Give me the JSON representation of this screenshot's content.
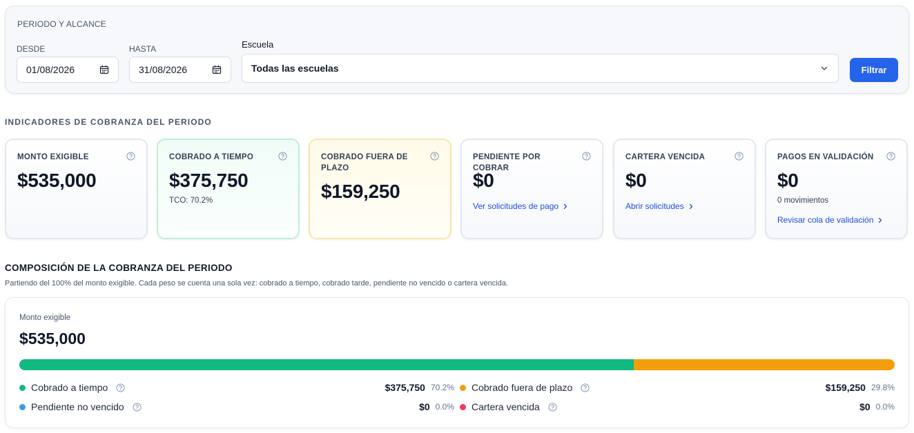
{
  "filters": {
    "title": "PERIODO Y ALCANCE",
    "from_label": "DESDE",
    "from_value": "01/08/2026",
    "to_label": "HASTA",
    "to_value": "31/08/2026",
    "school_label": "Escuela",
    "school_value": "Todas las escuelas",
    "filter_button": "Filtrar"
  },
  "indicators": {
    "title": "INDICADORES DE COBRANZA DEL PERIODO",
    "cards": [
      {
        "label": "MONTO EXIGIBLE",
        "value": "$535,000"
      },
      {
        "label": "COBRADO A TIEMPO",
        "value": "$375,750",
        "sub": "TCO: 70.2%"
      },
      {
        "label": "COBRADO FUERA DE PLAZO",
        "value": "$159,250"
      },
      {
        "label": "PENDIENTE POR COBRAR",
        "value": "$0",
        "link": "Ver solicitudes de pago"
      },
      {
        "label": "CARTERA VENCIDA",
        "value": "$0",
        "link": "Abrir solicitudes"
      },
      {
        "label": "PAGOS EN VALIDACIÓN",
        "value": "$0",
        "sub": "0 movimientos",
        "link": "Revisar cola de validación"
      }
    ]
  },
  "composition": {
    "title": "COMPOSICIÓN DE LA COBRANZA DEL PERIODO",
    "description": "Partiendo del 100% del monto exigible. Cada peso se cuenta una sola vez: cobrado a tiempo, cobrado tarde, pendiente no vencido o cartera vencida.",
    "total_label": "Monto exigible",
    "total_value": "$535,000",
    "segments": [
      {
        "name": "Cobrado a tiempo",
        "amount": "$375,750",
        "pct": "70.2%",
        "share": 0.702,
        "color": "#10b981"
      },
      {
        "name": "Cobrado fuera de plazo",
        "amount": "$159,250",
        "pct": "29.8%",
        "share": 0.298,
        "color": "#f59e0b"
      },
      {
        "name": "Pendiente no vencido",
        "amount": "$0",
        "pct": "0.0%",
        "share": 0,
        "color": "#3b9be8"
      },
      {
        "name": "Cartera vencida",
        "amount": "$0",
        "pct": "0.0%",
        "share": 0,
        "color": "#ef3a5d"
      }
    ]
  }
}
